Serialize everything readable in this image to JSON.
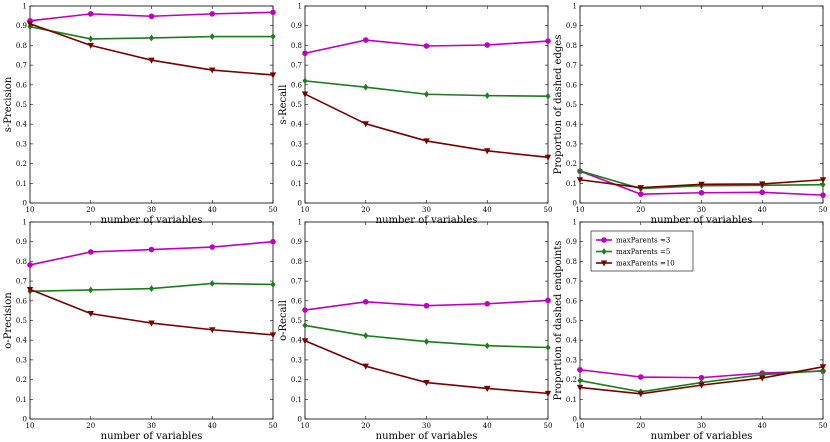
{
  "colors": {
    "maxParents3": "#c000c0",
    "maxParents5": "#1a7f1a",
    "maxParents10": "#7a0000",
    "frame": "#000000"
  },
  "legend": {
    "items": [
      {
        "label": "maxParents =3",
        "color": "#c000c0",
        "marker": "circle"
      },
      {
        "label": "maxParents =5",
        "color": "#1a7f1a",
        "marker": "diamond"
      },
      {
        "label": "maxParents =10",
        "color": "#7a0000",
        "marker": "triangle-down"
      }
    ],
    "placement": "upper-left of bottom-right panel"
  },
  "chart_data": [
    {
      "type": "line",
      "xlabel": "number of variables",
      "ylabel": "s-Precision",
      "xlim": [
        10,
        50
      ],
      "ylim": [
        0,
        1
      ],
      "x": [
        10,
        20,
        30,
        40,
        50
      ],
      "series": [
        {
          "name": "maxParents =3",
          "values": [
            0.925,
            0.96,
            0.948,
            0.96,
            0.968
          ]
        },
        {
          "name": "maxParents =5",
          "values": [
            0.895,
            0.833,
            0.838,
            0.845,
            0.845
          ]
        },
        {
          "name": "maxParents =10",
          "values": [
            0.91,
            0.8,
            0.725,
            0.675,
            0.65
          ]
        }
      ]
    },
    {
      "type": "line",
      "xlabel": "number of variables",
      "ylabel": "s-Recall",
      "xlim": [
        10,
        50
      ],
      "ylim": [
        0,
        1
      ],
      "x": [
        10,
        20,
        30,
        40,
        50
      ],
      "series": [
        {
          "name": "maxParents =3",
          "values": [
            0.76,
            0.827,
            0.797,
            0.802,
            0.822
          ]
        },
        {
          "name": "maxParents =5",
          "values": [
            0.62,
            0.588,
            0.552,
            0.545,
            0.542
          ]
        },
        {
          "name": "maxParents =10",
          "values": [
            0.553,
            0.402,
            0.315,
            0.265,
            0.232
          ]
        }
      ]
    },
    {
      "type": "line",
      "xlabel": "number of variables",
      "ylabel": "Proportion of dashed edges",
      "xlim": [
        10,
        50
      ],
      "ylim": [
        0,
        1
      ],
      "x": [
        10,
        20,
        30,
        40,
        50
      ],
      "series": [
        {
          "name": "maxParents =3",
          "values": [
            0.162,
            0.045,
            0.052,
            0.054,
            0.04
          ]
        },
        {
          "name": "maxParents =5",
          "values": [
            0.163,
            0.073,
            0.088,
            0.09,
            0.093
          ]
        },
        {
          "name": "maxParents =10",
          "values": [
            0.118,
            0.078,
            0.095,
            0.097,
            0.118
          ]
        }
      ]
    },
    {
      "type": "line",
      "xlabel": "number of variables",
      "ylabel": "o-Precision",
      "xlim": [
        10,
        50
      ],
      "ylim": [
        0,
        1
      ],
      "x": [
        10,
        20,
        30,
        40,
        50
      ],
      "series": [
        {
          "name": "maxParents =3",
          "values": [
            0.782,
            0.848,
            0.86,
            0.873,
            0.9
          ]
        },
        {
          "name": "maxParents =5",
          "values": [
            0.648,
            0.655,
            0.662,
            0.688,
            0.683
          ]
        },
        {
          "name": "maxParents =10",
          "values": [
            0.658,
            0.535,
            0.487,
            0.453,
            0.427
          ]
        }
      ]
    },
    {
      "type": "line",
      "xlabel": "number of variables",
      "ylabel": "o-Recall",
      "xlim": [
        10,
        50
      ],
      "ylim": [
        0,
        1
      ],
      "x": [
        10,
        20,
        30,
        40,
        50
      ],
      "series": [
        {
          "name": "maxParents =3",
          "values": [
            0.553,
            0.595,
            0.575,
            0.585,
            0.602
          ]
        },
        {
          "name": "maxParents =5",
          "values": [
            0.475,
            0.423,
            0.393,
            0.372,
            0.363
          ]
        },
        {
          "name": "maxParents =10",
          "values": [
            0.397,
            0.268,
            0.185,
            0.155,
            0.13
          ]
        }
      ]
    },
    {
      "type": "line",
      "xlabel": "number of variables",
      "ylabel": "Proportion of dashed endpoints",
      "xlim": [
        10,
        50
      ],
      "ylim": [
        0,
        1
      ],
      "x": [
        10,
        20,
        30,
        40,
        50
      ],
      "series": [
        {
          "name": "maxParents =3",
          "values": [
            0.25,
            0.213,
            0.21,
            0.233,
            0.243
          ]
        },
        {
          "name": "maxParents =5",
          "values": [
            0.195,
            0.138,
            0.185,
            0.225,
            0.245
          ]
        },
        {
          "name": "maxParents =10",
          "values": [
            0.16,
            0.128,
            0.172,
            0.208,
            0.265
          ]
        }
      ]
    }
  ]
}
